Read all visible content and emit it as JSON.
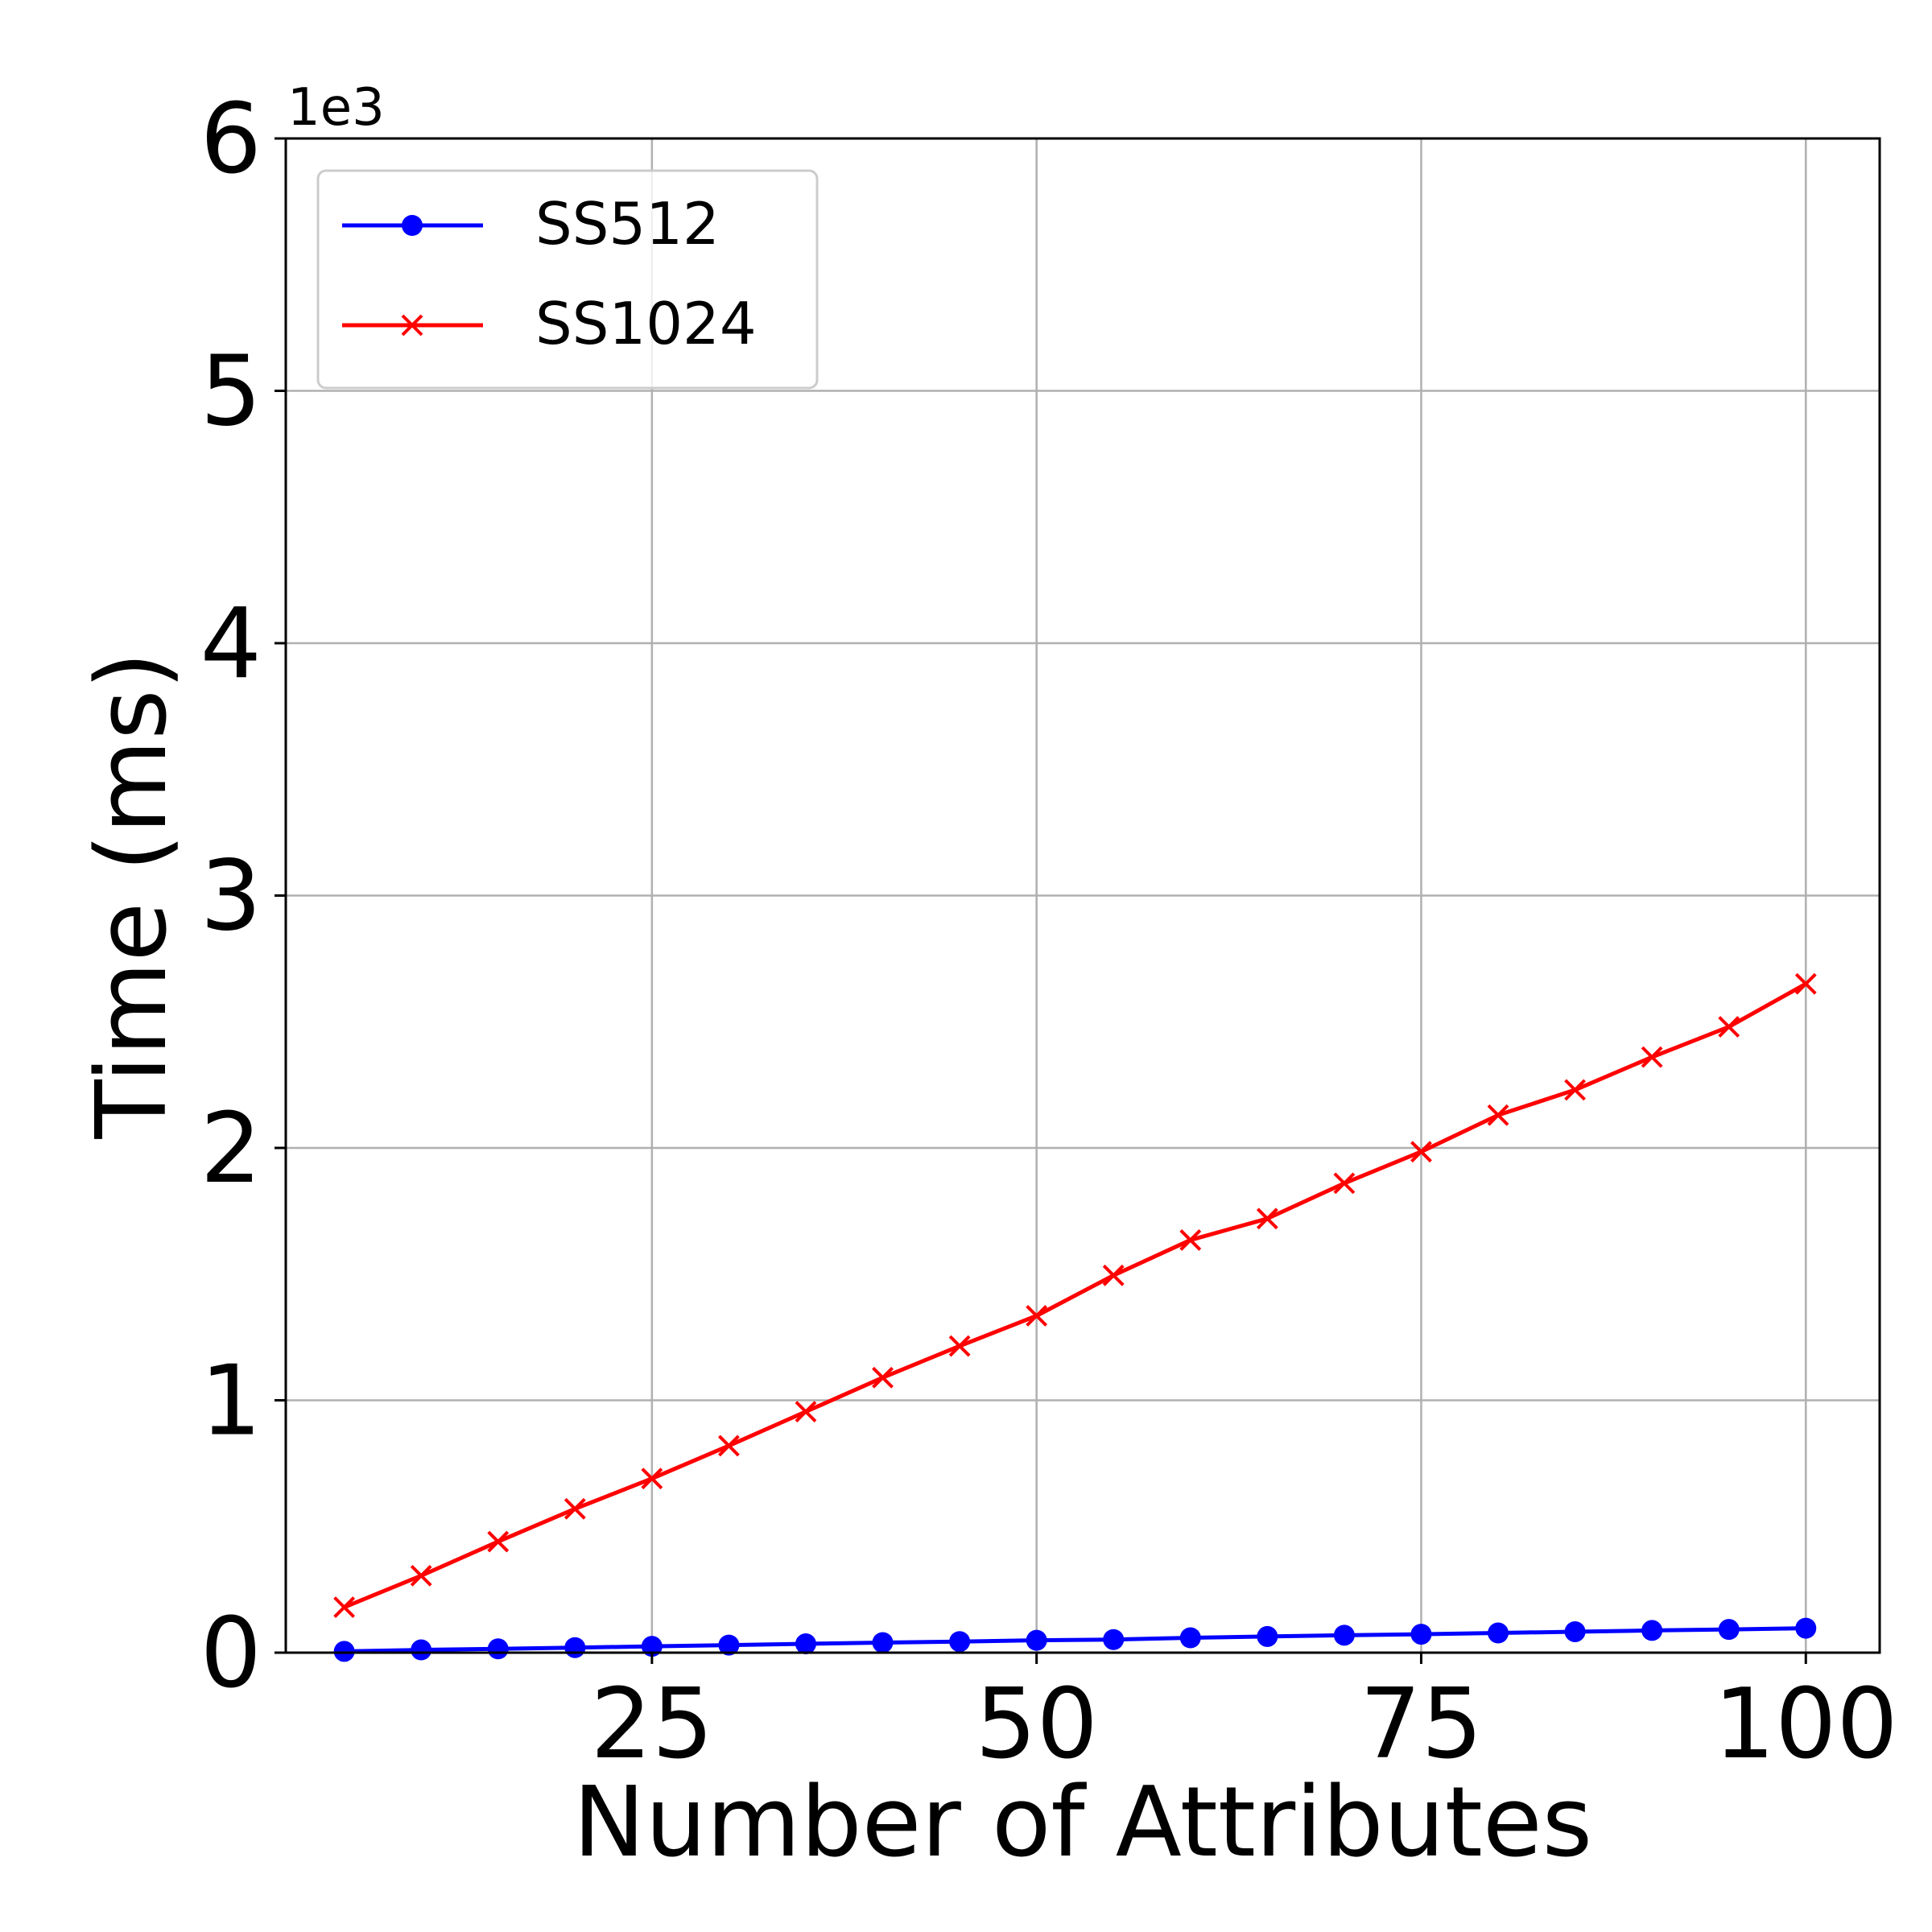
{
  "chart_data": {
    "type": "line",
    "xlabel": "Number of Attributes",
    "ylabel": "Time (ms)",
    "y_offset_label": "1e3",
    "xlim": [
      1.2,
      104.8
    ],
    "ylim": [
      0,
      6
    ],
    "x_ticks": [
      25,
      50,
      75,
      100
    ],
    "x_tick_labels": [
      "25",
      "50",
      "75",
      "100"
    ],
    "y_ticks": [
      0,
      1,
      2,
      3,
      4,
      5,
      6
    ],
    "y_tick_labels": [
      "0",
      "1",
      "2",
      "3",
      "4",
      "5",
      "6"
    ],
    "grid": true,
    "legend_position": "top-left",
    "x": [
      5,
      10,
      15,
      20,
      25,
      30,
      35,
      40,
      45,
      50,
      55,
      60,
      65,
      70,
      75,
      80,
      85,
      90,
      95,
      100
    ],
    "series": [
      {
        "name": "SS512",
        "color": "#0000ff",
        "marker": "circle",
        "values": [
          0.005,
          0.011,
          0.015,
          0.02,
          0.025,
          0.03,
          0.035,
          0.04,
          0.044,
          0.049,
          0.052,
          0.059,
          0.064,
          0.069,
          0.073,
          0.078,
          0.083,
          0.088,
          0.092,
          0.097
        ]
      },
      {
        "name": "SS1024",
        "color": "#ff0000",
        "marker": "x",
        "values": [
          0.18,
          0.305,
          0.44,
          0.57,
          0.69,
          0.82,
          0.955,
          1.09,
          1.215,
          1.335,
          1.495,
          1.635,
          1.72,
          1.86,
          1.985,
          2.13,
          2.23,
          2.36,
          2.48,
          2.65
        ]
      }
    ]
  }
}
